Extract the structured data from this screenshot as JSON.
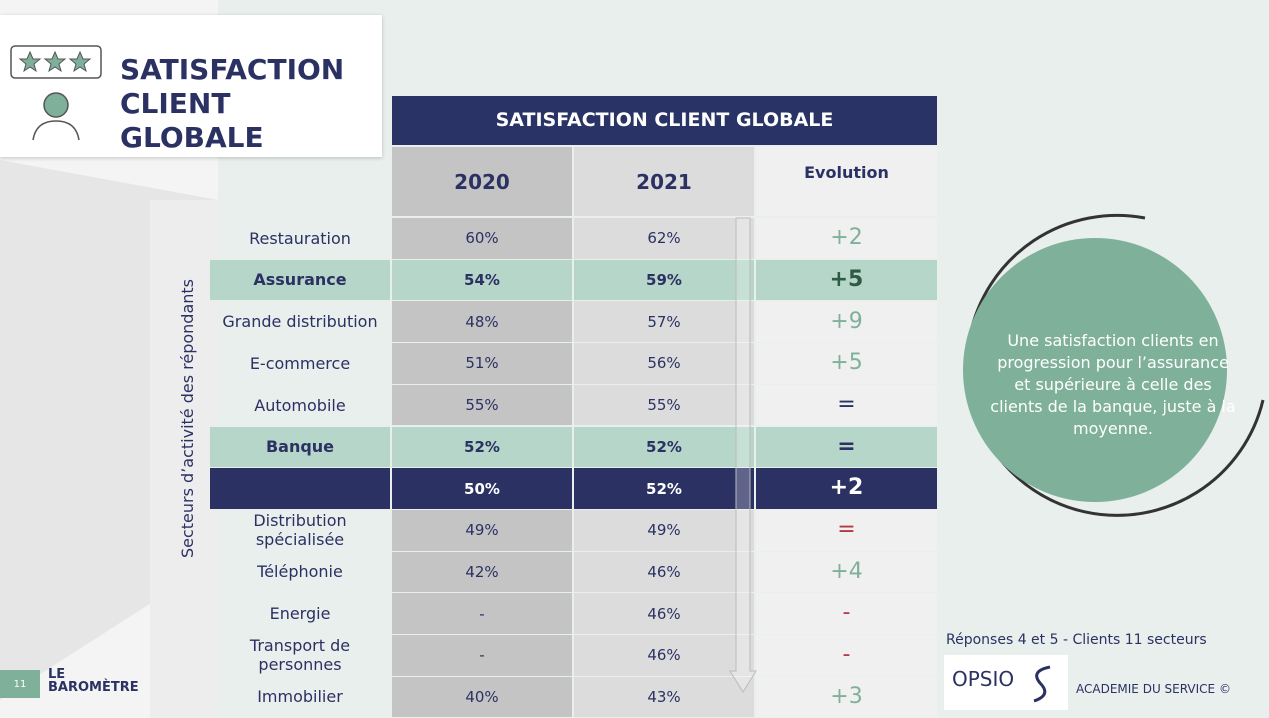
{
  "header": {
    "title": [
      "SATISFACTION",
      "CLIENT GLOBALE"
    ]
  },
  "table": {
    "title": "SATISFACTION CLIENT GLOBALE",
    "columns": [
      "2020",
      "2021",
      "Evolution"
    ],
    "axis_label": "Secteurs d’activité des répondants",
    "rows": [
      {
        "label": "Restauration",
        "values": [
          "60%",
          "62%",
          "+2"
        ],
        "style": "normal",
        "evolution_color": "#7fb09a"
      },
      {
        "label": "Assurance",
        "values": [
          "54%",
          "59%",
          "+5"
        ],
        "style": "highlight",
        "evolution_color": "#2f5a45"
      },
      {
        "label": "Grande distribution",
        "values": [
          "48%",
          "57%",
          "+9"
        ],
        "style": "normal",
        "evolution_color": "#7fb09a"
      },
      {
        "label": "E-commerce",
        "values": [
          "51%",
          "56%",
          "+5"
        ],
        "style": "normal",
        "evolution_color": "#7fb09a"
      },
      {
        "label": "Automobile",
        "values": [
          "55%",
          "55%",
          "="
        ],
        "style": "normal",
        "evolution_color": "#2b3163"
      },
      {
        "label": "Banque",
        "values": [
          "52%",
          "52%",
          "="
        ],
        "style": "highlight",
        "evolution_color": "#2b3163"
      },
      {
        "label": null,
        "values": [
          "50%",
          "52%",
          "+2"
        ],
        "style": "total",
        "evolution_color": "#ffffff"
      },
      {
        "label": "Distribution spécialisée",
        "values": [
          "49%",
          "49%",
          "="
        ],
        "style": "normal",
        "evolution_color": "#b0394a"
      },
      {
        "label": "Téléphonie",
        "values": [
          "42%",
          "46%",
          "+4"
        ],
        "style": "normal",
        "evolution_color": "#7fb09a"
      },
      {
        "label": "Energie",
        "values": [
          "-",
          "46%",
          "-"
        ],
        "style": "normal",
        "evolution_color": "#b0394a"
      },
      {
        "label": "Transport de personnes",
        "values": [
          "-",
          "46%",
          "-"
        ],
        "style": "normal",
        "evolution_color": "#b0394a"
      },
      {
        "label": "Immobilier",
        "values": [
          "40%",
          "43%",
          "+3"
        ],
        "style": "normal",
        "evolution_color": "#7fb09a"
      }
    ]
  },
  "callout": "Une satisfaction clients en progression pour l’assurance et supérieure à celle des clients de la banque, juste à la moyenne.",
  "footer": {
    "note": "Réponses 4 et 5 - Clients 11 secteurs",
    "page": "11",
    "logo_left": [
      "LE",
      "BAROMÈTRE"
    ],
    "logo_opsio": "OPSIO",
    "logo_academie": "ACADEMIE DU SERVICE ©"
  }
}
